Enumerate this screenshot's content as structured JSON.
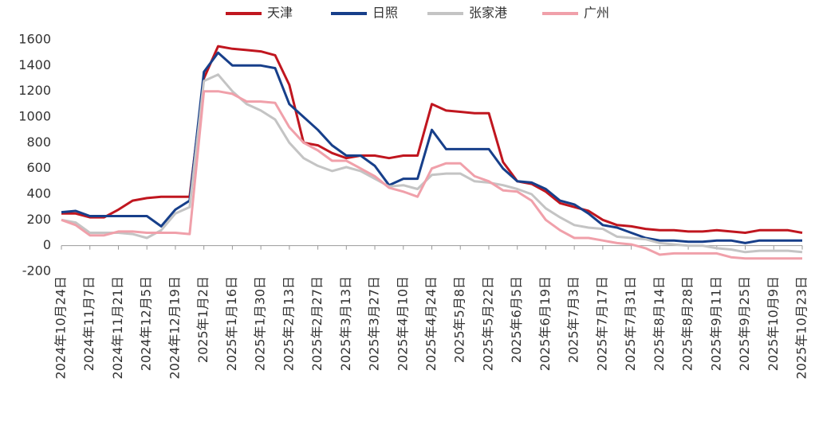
{
  "chart_data": {
    "type": "line",
    "categories": [
      "2024年10月24日",
      null,
      "2024年11月7日",
      null,
      "2024年11月21日",
      null,
      "2024年12月5日",
      null,
      "2024年12月19日",
      null,
      "2025年1月2日",
      null,
      "2025年1月16日",
      null,
      "2025年1月30日",
      null,
      "2025年2月13日",
      null,
      "2025年2月27日",
      null,
      "2025年3月13日",
      null,
      "2025年3月27日",
      null,
      "2025年4月10日",
      null,
      "2025年4月24日",
      null,
      "2025年5月8日",
      null,
      "2025年5月22日",
      null,
      "2025年6月5日",
      null,
      "2025年6月19日",
      null,
      "2025年7月3日",
      null,
      "2025年7月17日",
      null,
      "2025年7月31日",
      null,
      "2025年8月14日",
      null,
      "2025年8月28日",
      null,
      "2025年9月11日",
      null,
      "2025年9月25日",
      null,
      "2025年10月9日",
      null,
      "2025年10月23日"
    ],
    "series": [
      {
        "name": "天津",
        "color": "#c0161f",
        "values": [
          250,
          250,
          220,
          220,
          280,
          350,
          370,
          380,
          380,
          380,
          1300,
          1550,
          1530,
          1520,
          1510,
          1480,
          1250,
          800,
          780,
          720,
          680,
          700,
          700,
          680,
          700,
          700,
          1100,
          1050,
          1040,
          1030,
          1030,
          650,
          500,
          480,
          420,
          330,
          300,
          270,
          200,
          160,
          150,
          130,
          120,
          120,
          110,
          110,
          120,
          110,
          100,
          120,
          120,
          120,
          100
        ]
      },
      {
        "name": "日照",
        "color": "#173f8a",
        "values": [
          260,
          270,
          230,
          230,
          230,
          230,
          230,
          150,
          280,
          350,
          1350,
          1500,
          1400,
          1400,
          1400,
          1380,
          1100,
          1000,
          900,
          780,
          700,
          700,
          620,
          470,
          520,
          520,
          900,
          750,
          750,
          750,
          750,
          600,
          500,
          490,
          440,
          350,
          320,
          250,
          160,
          140,
          100,
          60,
          40,
          40,
          30,
          30,
          40,
          40,
          20,
          40,
          40,
          40,
          40
        ]
      },
      {
        "name": "张家港",
        "color": "#c4c4c4",
        "values": [
          200,
          180,
          100,
          100,
          100,
          90,
          60,
          120,
          250,
          300,
          1280,
          1330,
          1200,
          1100,
          1050,
          980,
          800,
          680,
          620,
          580,
          610,
          580,
          520,
          460,
          470,
          440,
          550,
          560,
          560,
          500,
          490,
          470,
          440,
          400,
          290,
          220,
          160,
          140,
          130,
          70,
          60,
          50,
          20,
          10,
          0,
          0,
          -20,
          -30,
          -50,
          -40,
          -40,
          -40,
          -50
        ]
      },
      {
        "name": "广州",
        "color": "#f0a0aa",
        "values": [
          200,
          160,
          80,
          80,
          110,
          110,
          100,
          100,
          100,
          90,
          1200,
          1200,
          1180,
          1120,
          1120,
          1110,
          920,
          800,
          740,
          660,
          660,
          600,
          540,
          450,
          420,
          380,
          600,
          640,
          640,
          540,
          500,
          430,
          420,
          350,
          200,
          120,
          60,
          60,
          40,
          20,
          10,
          -20,
          -70,
          -60,
          -60,
          -60,
          -60,
          -90,
          -100,
          -100,
          -100,
          -100,
          -100
        ]
      }
    ],
    "ylim": [
      -200,
      1600
    ],
    "yticks": [
      -200,
      0,
      200,
      400,
      600,
      800,
      1000,
      1200,
      1400,
      1600
    ]
  }
}
